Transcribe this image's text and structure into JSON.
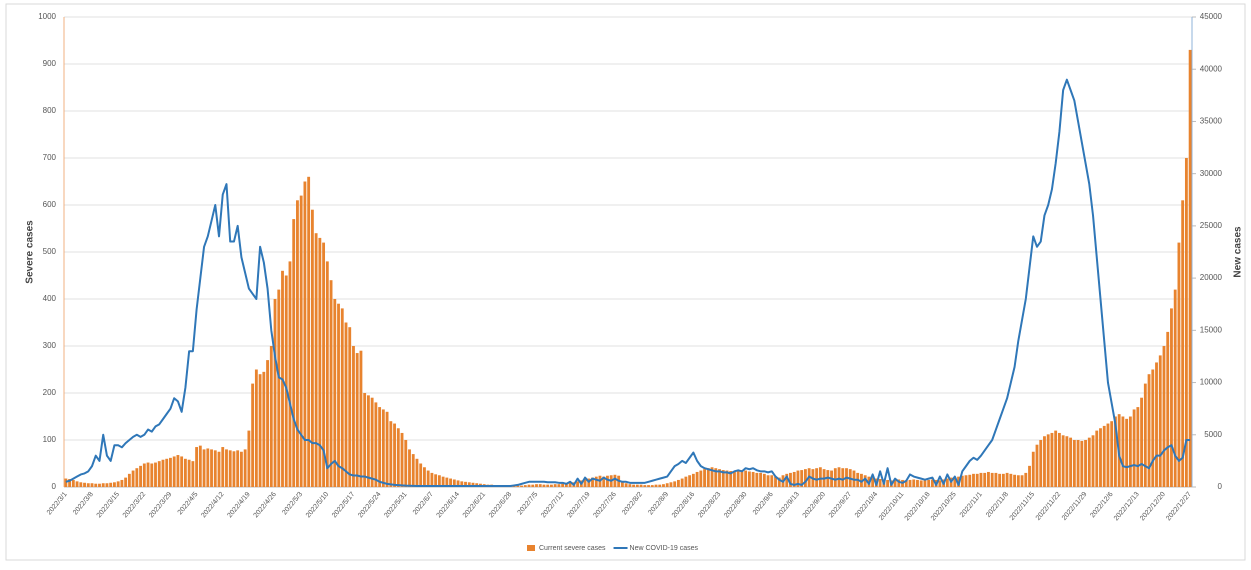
{
  "chart_data": {
    "type": "bar-line",
    "y_label": "Severe cases",
    "y2_label": "New cases",
    "categories": [
      "2022/3/1",
      null,
      null,
      null,
      null,
      null,
      null,
      "2022/3/8",
      null,
      null,
      null,
      null,
      null,
      null,
      "2022/3/15",
      null,
      null,
      null,
      null,
      null,
      null,
      "2022/3/22",
      null,
      null,
      null,
      null,
      null,
      null,
      "2022/3/29",
      null,
      null,
      null,
      null,
      null,
      null,
      "2022/4/5",
      null,
      null,
      null,
      null,
      null,
      null,
      "2022/4/12",
      null,
      null,
      null,
      null,
      null,
      null,
      "2022/4/19",
      null,
      null,
      null,
      null,
      null,
      null,
      "2022/4/26",
      null,
      null,
      null,
      null,
      null,
      null,
      "2022/5/3",
      null,
      null,
      null,
      null,
      null,
      null,
      "2022/5/10",
      null,
      null,
      null,
      null,
      null,
      null,
      "2022/5/17",
      null,
      null,
      null,
      null,
      null,
      null,
      "2022/5/24",
      null,
      null,
      null,
      null,
      null,
      null,
      "2022/5/31",
      null,
      null,
      null,
      null,
      null,
      null,
      "2022/6/7",
      null,
      null,
      null,
      null,
      null,
      null,
      "2022/6/14",
      null,
      null,
      null,
      null,
      null,
      null,
      "2022/6/21",
      null,
      null,
      null,
      null,
      null,
      null,
      "2022/6/28",
      null,
      null,
      null,
      null,
      null,
      null,
      "2022/7/5",
      null,
      null,
      null,
      null,
      null,
      null,
      "2022/7/12",
      null,
      null,
      null,
      null,
      null,
      null,
      "2022/7/19",
      null,
      null,
      null,
      null,
      null,
      null,
      "2022/7/26",
      null,
      null,
      null,
      null,
      null,
      null,
      "2022/8/2",
      null,
      null,
      null,
      null,
      null,
      null,
      "2022/8/9",
      null,
      null,
      null,
      null,
      null,
      null,
      "2022/8/16",
      null,
      null,
      null,
      null,
      null,
      null,
      "2022/8/23",
      null,
      null,
      null,
      null,
      null,
      null,
      "2022/8/30",
      null,
      null,
      null,
      null,
      null,
      null,
      "2022/9/6",
      null,
      null,
      null,
      null,
      null,
      null,
      "2022/9/13",
      null,
      null,
      null,
      null,
      null,
      null,
      "2022/9/20",
      null,
      null,
      null,
      null,
      null,
      null,
      "2022/9/27",
      null,
      null,
      null,
      null,
      null,
      null,
      "2022/10/4",
      null,
      null,
      null,
      null,
      null,
      null,
      "2022/10/11",
      null,
      null,
      null,
      null,
      null,
      null,
      "2022/10/18",
      null,
      null,
      null,
      null,
      null,
      null,
      "2022/10/25",
      null,
      null,
      null,
      null,
      null,
      null,
      "2022/11/1",
      null,
      null,
      null,
      null,
      null,
      null,
      "2022/11/8",
      null,
      null,
      null,
      null,
      null,
      null,
      "2022/11/15",
      null,
      null,
      null,
      null,
      null,
      null,
      "2022/11/22",
      null,
      null,
      null,
      null,
      null,
      null,
      "2022/11/29",
      null,
      null,
      null,
      null,
      null,
      null,
      "2022/12/6",
      null,
      null,
      null,
      null,
      null,
      null,
      "2022/12/13",
      null,
      null,
      null,
      null,
      null,
      null,
      "2022/12/20",
      null,
      null,
      null,
      null,
      null,
      null,
      "2022/12/27"
    ],
    "series": [
      {
        "name": "Current severe cases",
        "color": "#e8832e",
        "kind": "bar",
        "values": [
          18,
          17,
          15,
          12,
          10,
          9,
          8,
          8,
          7,
          7,
          8,
          8,
          9,
          10,
          12,
          15,
          20,
          28,
          35,
          40,
          45,
          50,
          52,
          50,
          52,
          55,
          58,
          60,
          62,
          65,
          68,
          65,
          60,
          58,
          55,
          85,
          88,
          80,
          82,
          80,
          78,
          75,
          85,
          80,
          78,
          76,
          78,
          75,
          80,
          120,
          220,
          250,
          240,
          245,
          270,
          300,
          400,
          420,
          460,
          450,
          480,
          570,
          610,
          620,
          650,
          660,
          590,
          540,
          530,
          520,
          480,
          440,
          400,
          390,
          380,
          350,
          340,
          300,
          285,
          290,
          200,
          195,
          190,
          180,
          170,
          165,
          160,
          140,
          135,
          125,
          115,
          100,
          80,
          70,
          60,
          50,
          42,
          35,
          30,
          27,
          25,
          22,
          20,
          18,
          16,
          14,
          12,
          11,
          10,
          9,
          8,
          7,
          6,
          5,
          5,
          4,
          4,
          3,
          3,
          3,
          3,
          3,
          3,
          4,
          5,
          5,
          6,
          6,
          5,
          5,
          5,
          6,
          6,
          7,
          8,
          9,
          10,
          12,
          14,
          16,
          18,
          20,
          22,
          24,
          22,
          24,
          25,
          26,
          24,
          10,
          8,
          6,
          5,
          5,
          5,
          4,
          4,
          4,
          5,
          5,
          6,
          8,
          10,
          12,
          15,
          18,
          22,
          25,
          28,
          32,
          35,
          38,
          40,
          42,
          40,
          38,
          36,
          35,
          34,
          33,
          35,
          36,
          35,
          33,
          32,
          30,
          30,
          28,
          25,
          25,
          22,
          20,
          25,
          28,
          30,
          32,
          35,
          36,
          38,
          40,
          38,
          40,
          42,
          38,
          36,
          35,
          40,
          42,
          40,
          40,
          38,
          35,
          30,
          28,
          25,
          22,
          20,
          18,
          17,
          16,
          15,
          14,
          15,
          16,
          15,
          14,
          15,
          16,
          15,
          14,
          14,
          15,
          16,
          15,
          14,
          16,
          18,
          20,
          20,
          22,
          24,
          25,
          26,
          28,
          28,
          30,
          30,
          32,
          30,
          30,
          28,
          28,
          30,
          28,
          26,
          25,
          25,
          30,
          45,
          75,
          90,
          100,
          108,
          112,
          115,
          120,
          115,
          110,
          108,
          105,
          100,
          100,
          98,
          100,
          105,
          110,
          120,
          125,
          130,
          135,
          140,
          150,
          155,
          150,
          145,
          150,
          165,
          170,
          190,
          220,
          240,
          250,
          265,
          280,
          300,
          330,
          380,
          420,
          520,
          610,
          700,
          930
        ]
      },
      {
        "name": "New COVID-19 cases",
        "color": "#2f77b8",
        "kind": "line",
        "axis": "y2",
        "values": [
          500,
          600,
          800,
          1000,
          1200,
          1300,
          1500,
          2000,
          3000,
          2500,
          5000,
          3000,
          2500,
          4000,
          4000,
          3800,
          4200,
          4500,
          4800,
          5000,
          4800,
          5000,
          5500,
          5300,
          5800,
          6000,
          6500,
          7000,
          7500,
          8500,
          8200,
          7200,
          9500,
          13000,
          13000,
          17000,
          20000,
          23000,
          24000,
          25500,
          27000,
          24000,
          28000,
          29000,
          23500,
          23500,
          25000,
          22000,
          20500,
          19000,
          18500,
          18000,
          23000,
          21500,
          19000,
          15000,
          12500,
          10500,
          10300,
          9500,
          8000,
          6500,
          5500,
          5000,
          4500,
          4500,
          4200,
          4200,
          4000,
          3500,
          1800,
          2200,
          2500,
          2000,
          1800,
          1500,
          1200,
          1100,
          1100,
          1000,
          1000,
          900,
          800,
          700,
          500,
          400,
          300,
          250,
          200,
          180,
          150,
          130,
          120,
          110,
          100,
          100,
          100,
          100,
          100,
          100,
          100,
          100,
          100,
          100,
          100,
          100,
          100,
          100,
          100,
          100,
          100,
          100,
          100,
          100,
          100,
          100,
          100,
          100,
          100,
          100,
          150,
          200,
          300,
          400,
          500,
          500,
          500,
          500,
          500,
          450,
          450,
          450,
          400,
          400,
          300,
          500,
          200,
          800,
          300,
          900,
          500,
          800,
          700,
          600,
          900,
          700,
          600,
          800,
          600,
          500,
          500,
          400,
          400,
          400,
          400,
          400,
          500,
          600,
          700,
          800,
          900,
          1000,
          1500,
          2000,
          2200,
          2500,
          2300,
          2800,
          3300,
          2500,
          2000,
          1800,
          1700,
          1600,
          1500,
          1500,
          1400,
          1400,
          1300,
          1500,
          1600,
          1500,
          1800,
          1700,
          1800,
          1600,
          1500,
          1500,
          1400,
          1500,
          1000,
          700,
          500,
          1000,
          300,
          200,
          300,
          200,
          500,
          1000,
          800,
          700,
          800,
          800,
          900,
          800,
          700,
          800,
          700,
          900,
          800,
          700,
          700,
          500,
          800,
          300,
          1200,
          200,
          1500,
          300,
          1800,
          200,
          800,
          500,
          400,
          600,
          1200,
          1000,
          900,
          800,
          700,
          800,
          900,
          200,
          1000,
          300,
          1200,
          500,
          1000,
          200,
          1500,
          2000,
          2500,
          2800,
          2600,
          3000,
          3500,
          4000,
          4500,
          5500,
          6500,
          7500,
          8500,
          10000,
          11500,
          14000,
          16000,
          18000,
          21000,
          24000,
          23000,
          23500,
          26000,
          27000,
          28500,
          31000,
          34000,
          38000,
          39000,
          38000,
          37000,
          35000,
          33000,
          31000,
          29000,
          26000,
          22000,
          18000,
          14000,
          10000,
          8000,
          6000,
          3000,
          2000,
          1900,
          2000,
          2100,
          2000,
          2200,
          2000,
          1800,
          2500,
          3000,
          3000,
          3500,
          3800,
          4000,
          3000,
          2500,
          2800,
          4500,
          4500
        ]
      }
    ],
    "ylim": [
      0,
      1000
    ],
    "yticks": [
      0,
      100,
      200,
      300,
      400,
      500,
      600,
      700,
      800,
      900,
      1000
    ],
    "y2lim": [
      0,
      45000
    ],
    "y2ticks": [
      0,
      5000,
      10000,
      15000,
      20000,
      25000,
      30000,
      35000,
      40000,
      45000
    ],
    "grid": true,
    "legend": "bottom"
  }
}
